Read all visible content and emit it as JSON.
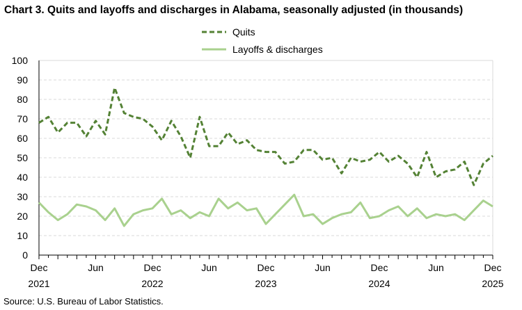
{
  "chart_data": {
    "type": "line",
    "title": "Chart 3. Quits and layoffs and discharges in Alabama, seasonally adjusted (in thousands)",
    "source": "Source: U.S. Bureau of Labor Statistics.",
    "xlabel": "",
    "ylabel": "",
    "ylim": [
      0,
      100
    ],
    "yticks": [
      0,
      10,
      20,
      30,
      40,
      50,
      60,
      70,
      80,
      90,
      100
    ],
    "x_start": "Dec 2021",
    "x_end": "Dec 2025",
    "x_tick_labels": [
      {
        "month": "Dec",
        "year": "2021",
        "index": 0
      },
      {
        "month": "Jun",
        "year": "",
        "index": 6
      },
      {
        "month": "Dec",
        "year": "2022",
        "index": 12
      },
      {
        "month": "Jun",
        "year": "",
        "index": 18
      },
      {
        "month": "Dec",
        "year": "2023",
        "index": 24
      },
      {
        "month": "Jun",
        "year": "",
        "index": 30
      },
      {
        "month": "Dec",
        "year": "2024",
        "index": 36
      },
      {
        "month": "Jun",
        "year": "",
        "index": 42
      },
      {
        "month": "Dec",
        "year": "2025",
        "index": 48
      }
    ],
    "grid": true,
    "legend_position": "top",
    "series": [
      {
        "name": "Quits",
        "color": "#548235",
        "style": "dashed",
        "values": [
          68,
          71,
          63,
          68,
          68,
          61,
          69,
          62,
          86,
          73,
          71,
          70,
          66,
          59,
          69,
          61,
          50,
          71,
          56,
          56,
          63,
          57,
          59,
          54,
          53,
          53,
          47,
          48,
          54,
          54,
          49,
          50,
          42,
          50,
          48,
          49,
          53,
          48,
          51,
          47,
          40,
          53,
          40,
          43,
          44,
          48,
          36,
          47,
          51
        ]
      },
      {
        "name": "Layoffs & discharges",
        "color": "#A9D18E",
        "style": "solid",
        "values": [
          27,
          22,
          18,
          21,
          26,
          25,
          23,
          18,
          24,
          15,
          21,
          23,
          24,
          29,
          21,
          23,
          19,
          22,
          20,
          29,
          24,
          27,
          23,
          24,
          16,
          21,
          26,
          31,
          20,
          21,
          16,
          19,
          21,
          22,
          27,
          19,
          20,
          23,
          25,
          20,
          24,
          19,
          21,
          20,
          21,
          18,
          23,
          28,
          25
        ]
      }
    ]
  }
}
